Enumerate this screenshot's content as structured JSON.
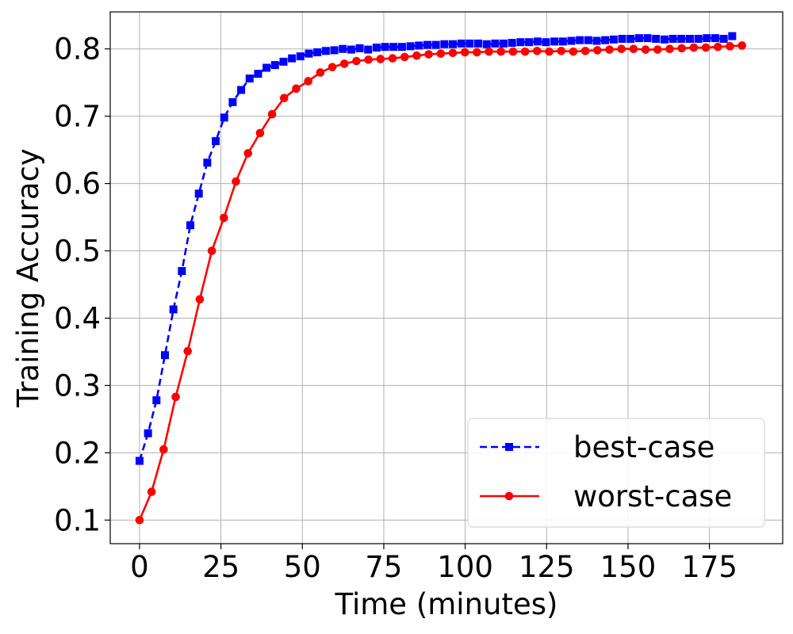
{
  "chart_data": {
    "type": "line",
    "xlabel": "Time (minutes)",
    "ylabel": "Training Accuracy",
    "xlim": [
      -9,
      197.5
    ],
    "ylim": [
      0.065,
      0.855
    ],
    "xticks": [
      0,
      25,
      50,
      75,
      100,
      125,
      150,
      175
    ],
    "yticks": [
      0.1,
      0.2,
      0.3,
      0.4,
      0.5,
      0.6,
      0.7,
      0.8
    ],
    "grid": true,
    "legend_position": "bottom-right",
    "series": [
      {
        "name": "best-case",
        "color": "#0000ff",
        "line_style": "dashed",
        "marker": "square",
        "x": [
          0,
          2.6,
          5.2,
          7.8,
          10.4,
          13,
          15.6,
          18.2,
          20.8,
          23.4,
          26,
          28.6,
          31.2,
          33.8,
          36.4,
          39,
          41.6,
          44.2,
          46.8,
          49.4,
          52,
          54.6,
          57.2,
          59.8,
          62.4,
          65,
          67.6,
          70.2,
          72.8,
          75.4,
          78,
          80.6,
          83.2,
          85.8,
          88.4,
          91,
          93.6,
          96.2,
          98.8,
          101.4,
          104,
          106.6,
          109.2,
          111.8,
          114.4,
          117,
          119.6,
          122.2,
          124.8,
          127.4,
          130,
          132.6,
          135.2,
          137.8,
          140.4,
          143,
          145.6,
          148.2,
          150.8,
          153.4,
          156,
          158.6,
          161.2,
          163.8,
          166.4,
          169,
          171.6,
          174.2,
          176.8,
          179.4,
          182
        ],
        "y": [
          0.188,
          0.229,
          0.278,
          0.345,
          0.413,
          0.47,
          0.538,
          0.585,
          0.631,
          0.663,
          0.698,
          0.721,
          0.739,
          0.756,
          0.763,
          0.772,
          0.776,
          0.781,
          0.786,
          0.789,
          0.793,
          0.795,
          0.797,
          0.798,
          0.8,
          0.799,
          0.801,
          0.799,
          0.802,
          0.803,
          0.803,
          0.803,
          0.804,
          0.805,
          0.806,
          0.806,
          0.807,
          0.807,
          0.808,
          0.808,
          0.808,
          0.807,
          0.808,
          0.808,
          0.809,
          0.81,
          0.81,
          0.811,
          0.81,
          0.811,
          0.811,
          0.812,
          0.813,
          0.813,
          0.812,
          0.813,
          0.814,
          0.815,
          0.815,
          0.816,
          0.816,
          0.815,
          0.814,
          0.815,
          0.815,
          0.815,
          0.815,
          0.816,
          0.816,
          0.815,
          0.819
        ]
      },
      {
        "name": "worst-case",
        "color": "#ff0000",
        "line_style": "solid",
        "marker": "circle",
        "x": [
          0,
          3.7,
          7.4,
          11.1,
          14.8,
          18.5,
          22.2,
          25.9,
          29.6,
          33.3,
          37,
          40.7,
          44.4,
          48.1,
          51.8,
          55.5,
          59.2,
          62.9,
          66.6,
          70.3,
          74,
          77.7,
          81.4,
          85.1,
          88.8,
          92.5,
          96.2,
          99.9,
          103.6,
          107.3,
          111,
          114.7,
          118.4,
          122.1,
          125.8,
          129.5,
          133.2,
          136.9,
          140.6,
          144.3,
          148,
          151.7,
          155.4,
          159.1,
          162.8,
          166.5,
          170.2,
          173.9,
          177.6,
          181.3,
          185
        ],
        "y": [
          0.1,
          0.142,
          0.205,
          0.283,
          0.351,
          0.428,
          0.5,
          0.549,
          0.603,
          0.645,
          0.675,
          0.703,
          0.727,
          0.741,
          0.752,
          0.765,
          0.773,
          0.778,
          0.782,
          0.784,
          0.785,
          0.786,
          0.788,
          0.79,
          0.792,
          0.793,
          0.794,
          0.795,
          0.795,
          0.796,
          0.796,
          0.796,
          0.796,
          0.797,
          0.796,
          0.797,
          0.796,
          0.797,
          0.798,
          0.799,
          0.8,
          0.8,
          0.799,
          0.799,
          0.8,
          0.801,
          0.802,
          0.802,
          0.803,
          0.804,
          0.805
        ]
      }
    ]
  }
}
